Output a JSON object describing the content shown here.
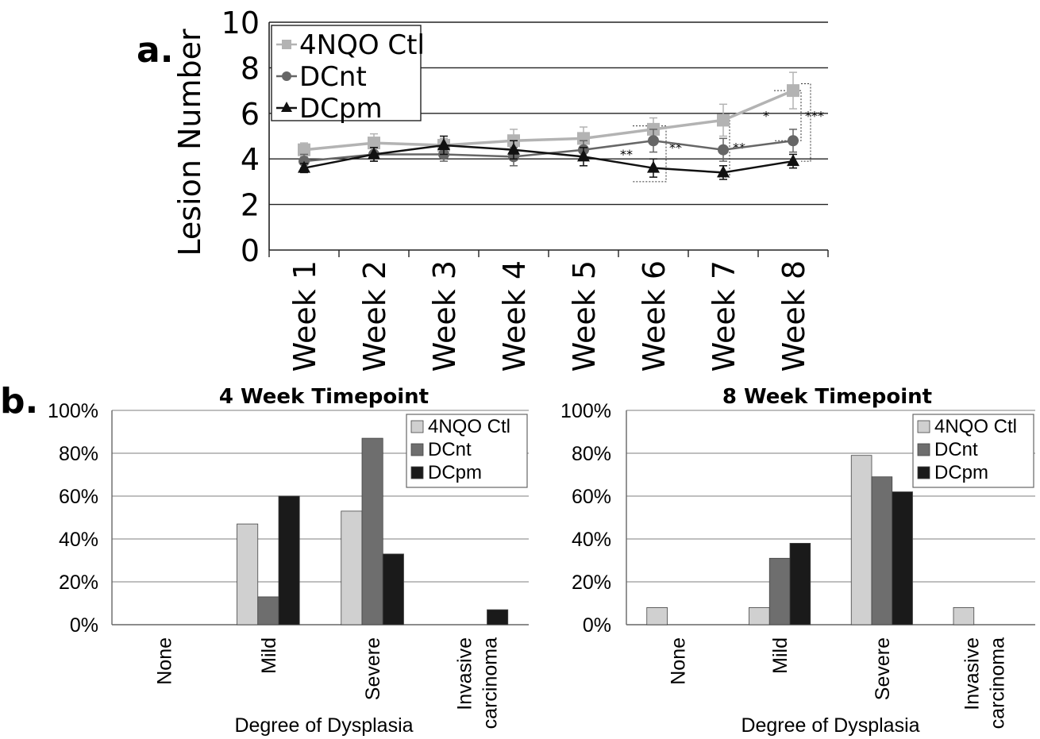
{
  "labels": {
    "panel_a": "a.",
    "panel_b": "b."
  },
  "chart_data": [
    {
      "type": "line",
      "title": "",
      "xlabel": "",
      "ylabel": "Lesion Number",
      "ylim": [
        0,
        10
      ],
      "yticks": [
        "0",
        "2",
        "4",
        "6",
        "8",
        "10"
      ],
      "categories": [
        "Week 1",
        "Week 2",
        "Week 3",
        "Week 4",
        "Week 5",
        "Week 6",
        "Week 7",
        "Week 8"
      ],
      "grid": true,
      "legend": "top-left",
      "series": [
        {
          "name": "4NQO Ctl",
          "marker": "square",
          "color": "#b3b3b3",
          "values": [
            4.4,
            4.7,
            4.6,
            4.8,
            4.9,
            5.3,
            5.7,
            7.0
          ],
          "errors": [
            0.3,
            0.4,
            0.3,
            0.5,
            0.5,
            0.5,
            0.7,
            0.8
          ]
        },
        {
          "name": "DCnt",
          "marker": "circle",
          "color": "#666666",
          "values": [
            3.9,
            4.2,
            4.2,
            4.1,
            4.4,
            4.8,
            4.4,
            4.8
          ],
          "errors": [
            0.3,
            0.3,
            0.3,
            0.4,
            0.4,
            0.5,
            0.5,
            0.5
          ]
        },
        {
          "name": "DCpm",
          "marker": "triangle",
          "color": "#111111",
          "values": [
            3.6,
            4.2,
            4.6,
            4.4,
            4.1,
            3.6,
            3.4,
            3.9
          ],
          "errors": [
            0.2,
            0.3,
            0.4,
            0.4,
            0.4,
            0.4,
            0.3,
            0.3
          ]
        }
      ],
      "annotations": [
        "**",
        "**",
        "**",
        "*",
        "***"
      ]
    },
    {
      "type": "bar",
      "title": "4 Week Timepoint",
      "xlabel": "Degree of Dysplasia",
      "ylabel": "",
      "ylim": [
        0,
        100
      ],
      "yticks": [
        "0%",
        "20%",
        "40%",
        "60%",
        "80%",
        "100%"
      ],
      "categories": [
        "None",
        "Mild",
        "Severe",
        "Invasive carcinoma"
      ],
      "category_lines": [
        [
          "None"
        ],
        [
          "Mild"
        ],
        [
          "Severe"
        ],
        [
          "Invasive",
          "carcinoma"
        ]
      ],
      "legend": "top-right",
      "series": [
        {
          "name": "4NQO Ctl",
          "color": "#d0d0d0",
          "values": [
            0,
            47,
            53,
            0
          ]
        },
        {
          "name": "DCnt",
          "color": "#6e6e6e",
          "values": [
            0,
            13,
            87,
            0
          ]
        },
        {
          "name": "DCpm",
          "color": "#1a1a1a",
          "values": [
            0,
            60,
            33,
            7
          ]
        }
      ]
    },
    {
      "type": "bar",
      "title": "8 Week Timepoint",
      "xlabel": "Degree of Dysplasia",
      "ylabel": "",
      "ylim": [
        0,
        100
      ],
      "yticks": [
        "0%",
        "20%",
        "40%",
        "60%",
        "80%",
        "100%"
      ],
      "categories": [
        "None",
        "Mild",
        "Severe",
        "Invasive carcinoma"
      ],
      "category_lines": [
        [
          "None"
        ],
        [
          "Mild"
        ],
        [
          "Severe"
        ],
        [
          "Invasive",
          "carcinoma"
        ]
      ],
      "legend": "top-right",
      "series": [
        {
          "name": "4NQO Ctl",
          "color": "#d0d0d0",
          "values": [
            8,
            8,
            79,
            8
          ]
        },
        {
          "name": "DCnt",
          "color": "#6e6e6e",
          "values": [
            0,
            31,
            69,
            0
          ]
        },
        {
          "name": "DCpm",
          "color": "#1a1a1a",
          "values": [
            0,
            38,
            62,
            0
          ]
        }
      ]
    }
  ]
}
